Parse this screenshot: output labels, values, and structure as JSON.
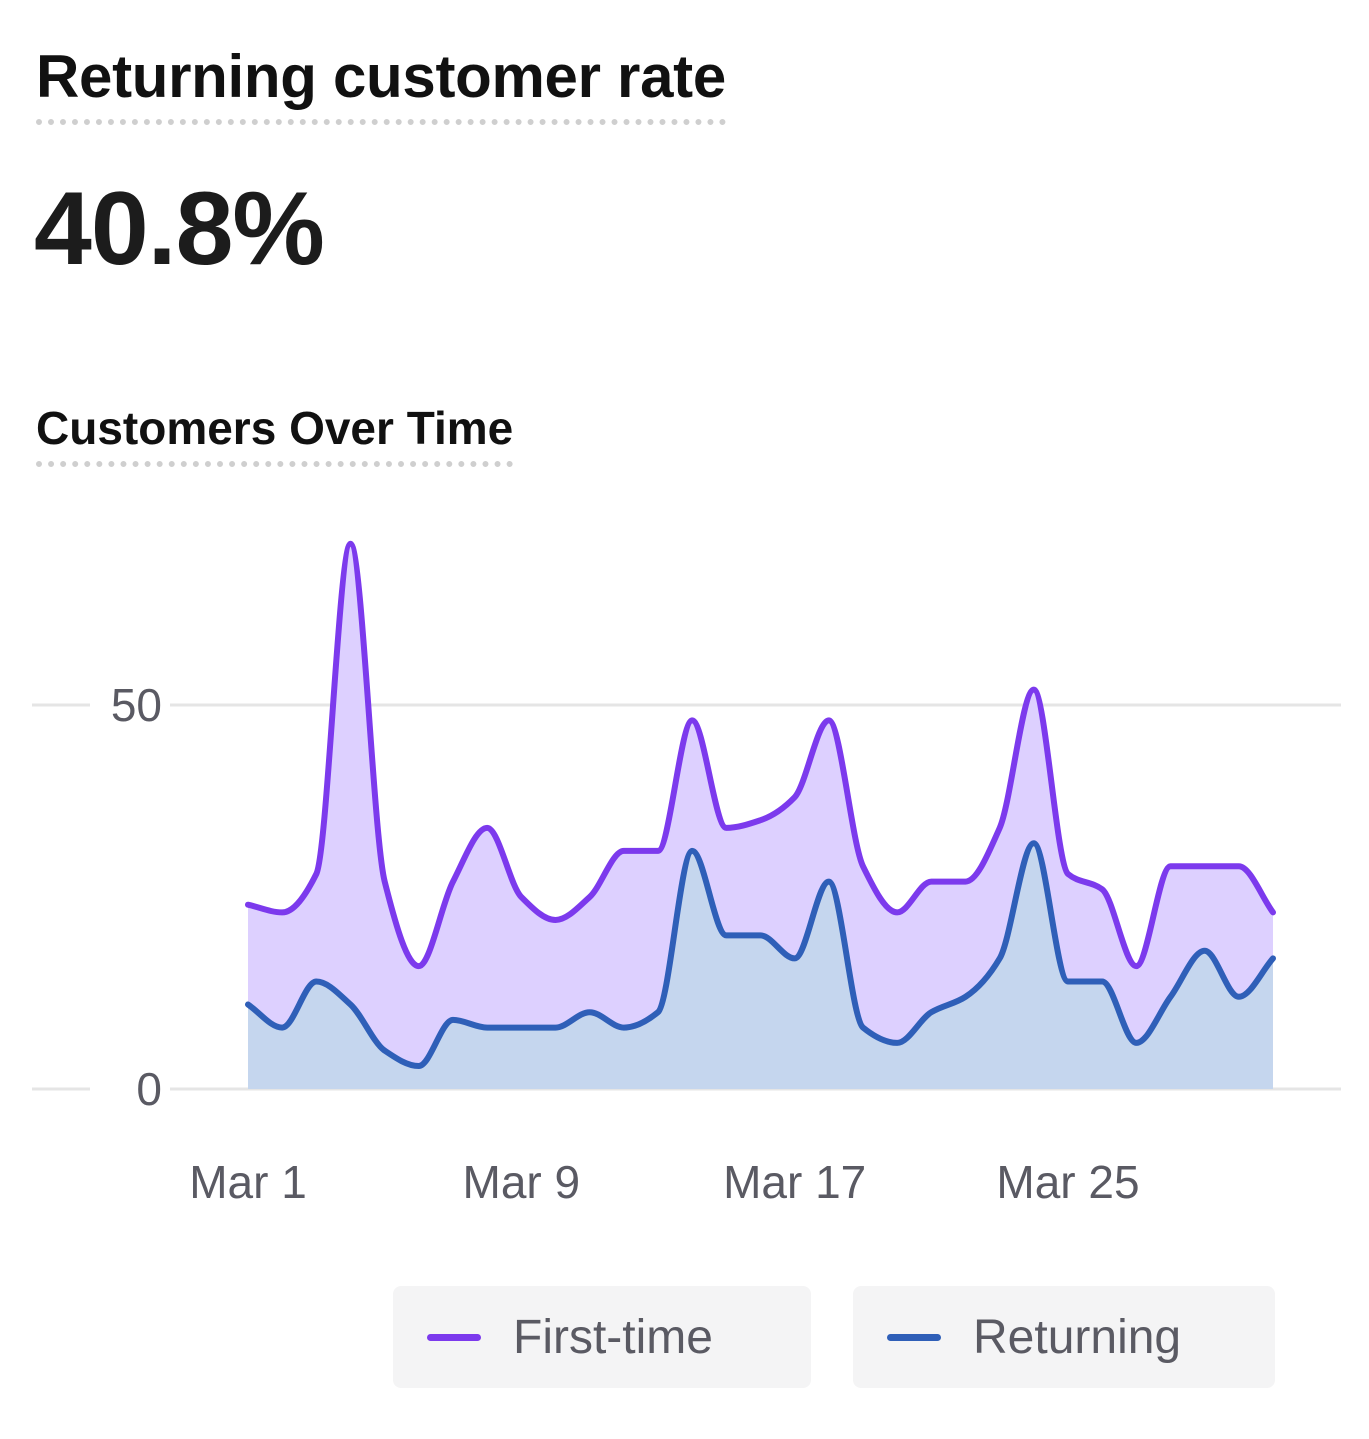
{
  "metric": {
    "title": "Returning customer rate",
    "value": "40.8%"
  },
  "chart_title": "Customers Over Time",
  "colors": {
    "first_time_line": "#7c3aed",
    "first_time_fill": "#ddd0ff",
    "returning_line": "#2f5fb8",
    "returning_fill": "#c5d6ee",
    "grid": "#e5e5e5",
    "tick_text": "#5a5a63"
  },
  "legend": {
    "first_time": "First-time",
    "returning": "Returning"
  },
  "chart_data": {
    "type": "area",
    "stacked": true,
    "x": [
      "Mar 1",
      "Mar 2",
      "Mar 3",
      "Mar 4",
      "Mar 5",
      "Mar 6",
      "Mar 7",
      "Mar 8",
      "Mar 9",
      "Mar 10",
      "Mar 11",
      "Mar 12",
      "Mar 13",
      "Mar 14",
      "Mar 15",
      "Mar 16",
      "Mar 17",
      "Mar 18",
      "Mar 19",
      "Mar 20",
      "Mar 21",
      "Mar 22",
      "Mar 23",
      "Mar 24",
      "Mar 25",
      "Mar 26",
      "Mar 27",
      "Mar 28",
      "Mar 29",
      "Mar 30",
      "Mar 31"
    ],
    "x_ticks": [
      "Mar 1",
      "Mar 9",
      "Mar 17",
      "Mar 25"
    ],
    "y_ticks": [
      0,
      50
    ],
    "ylim": [
      0,
      72
    ],
    "grid": true,
    "legend_position": "bottom",
    "series": [
      {
        "name": "Returning",
        "values": [
          11,
          8,
          14,
          11,
          5,
          3,
          9,
          8,
          8,
          8,
          10,
          8,
          10,
          31,
          20,
          20,
          17,
          27,
          8,
          6,
          10,
          12,
          17,
          32,
          14,
          14,
          6,
          12,
          18,
          12,
          17
        ]
      },
      {
        "name": "First-time",
        "values": [
          13,
          15,
          14,
          60,
          22,
          13,
          18,
          26,
          17,
          14,
          15,
          23,
          21,
          17,
          14,
          15,
          21,
          21,
          21,
          17,
          17,
          15,
          17,
          20,
          14,
          12,
          10,
          17,
          11,
          17,
          6
        ]
      }
    ]
  }
}
